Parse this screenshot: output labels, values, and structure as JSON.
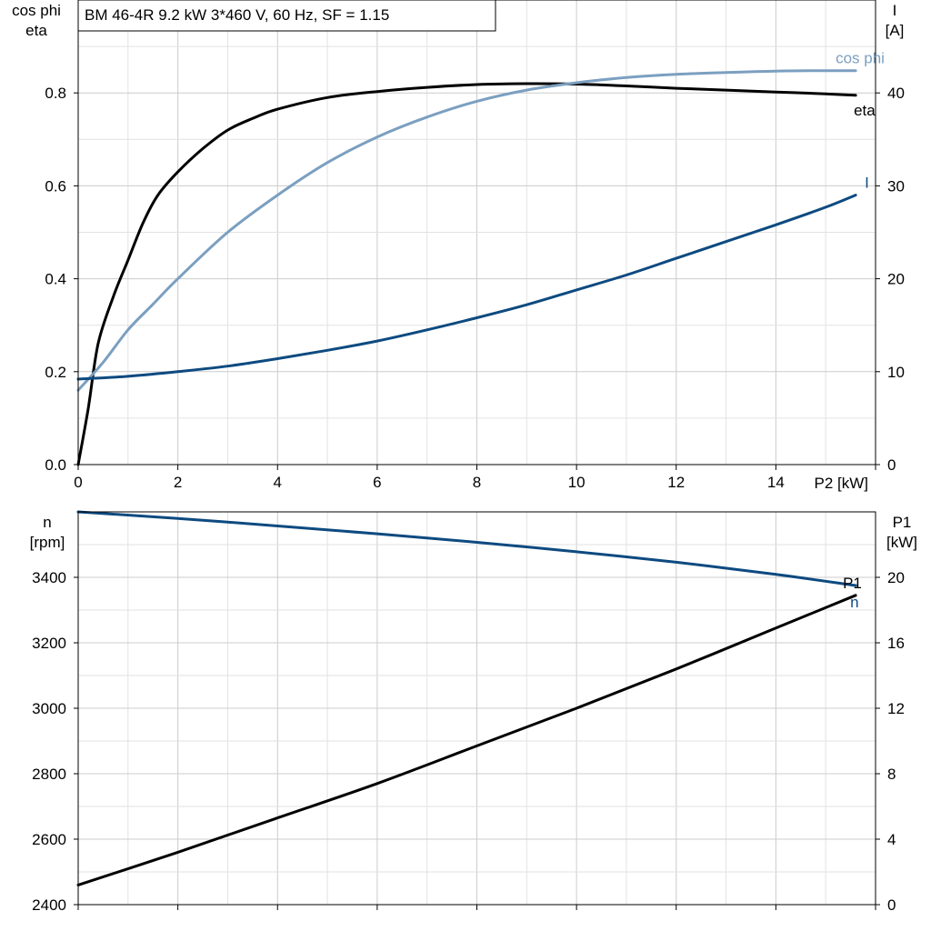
{
  "title": "BM 46-4R   9.2 kW   3*460 V, 60 Hz, SF = 1.15",
  "colors": {
    "eta": "#000000",
    "cos_phi": "#7b9fc0",
    "current": "#0d4a80",
    "speed": "#0d4a80",
    "p1": "#000000"
  },
  "chart_data": [
    {
      "type": "line",
      "name": "top-panel",
      "xlabel": "P2 [kW]",
      "xlim": [
        0,
        16
      ],
      "x_ticks": [
        "0",
        "2",
        "4",
        "6",
        "8",
        "10",
        "12",
        "14"
      ],
      "left_axis": {
        "label_lines": [
          "cos phi",
          "eta"
        ],
        "ylim": [
          0,
          1.0
        ],
        "ticks": [
          "0.0",
          "0.2",
          "0.4",
          "0.6",
          "0.8"
        ]
      },
      "right_axis": {
        "label_lines": [
          "I",
          "[A]"
        ],
        "ylim": [
          0,
          50
        ],
        "ticks": [
          "0",
          "10",
          "20",
          "30",
          "40"
        ]
      },
      "grid": true,
      "series": [
        {
          "name": "eta",
          "axis": "left",
          "x": [
            0,
            0.2,
            0.4,
            0.7,
            1.0,
            1.3,
            1.6,
            2.0,
            2.5,
            3.0,
            3.5,
            4.0,
            5.0,
            6.0,
            7.0,
            8.0,
            9.0,
            10.0,
            11.0,
            12.0,
            13.0,
            14.0,
            15.0,
            15.6
          ],
          "y": [
            0.0,
            0.12,
            0.26,
            0.36,
            0.44,
            0.52,
            0.58,
            0.63,
            0.68,
            0.72,
            0.745,
            0.765,
            0.79,
            0.803,
            0.812,
            0.818,
            0.82,
            0.819,
            0.815,
            0.81,
            0.806,
            0.802,
            0.798,
            0.795
          ]
        },
        {
          "name": "cos phi",
          "axis": "left",
          "x": [
            0,
            0.5,
            1.0,
            1.5,
            2.0,
            3.0,
            4.0,
            5.0,
            6.0,
            7.0,
            8.0,
            9.0,
            10.0,
            11.0,
            12.0,
            13.0,
            14.0,
            15.0,
            15.6
          ],
          "y": [
            0.16,
            0.22,
            0.29,
            0.345,
            0.4,
            0.5,
            0.58,
            0.65,
            0.705,
            0.748,
            0.782,
            0.806,
            0.822,
            0.833,
            0.84,
            0.844,
            0.847,
            0.848,
            0.848
          ]
        },
        {
          "name": "I",
          "axis": "right",
          "x": [
            0,
            1,
            2,
            3,
            4,
            5,
            6,
            7,
            8,
            9,
            10,
            11,
            12,
            13,
            14,
            15,
            15.6
          ],
          "y": [
            9.2,
            9.5,
            10.0,
            10.6,
            11.4,
            12.3,
            13.3,
            14.5,
            15.8,
            17.2,
            18.8,
            20.4,
            22.2,
            24.0,
            25.8,
            27.7,
            29.0
          ]
        }
      ]
    },
    {
      "type": "line",
      "name": "bottom-panel",
      "xlim": [
        0,
        16
      ],
      "left_axis": {
        "label_lines": [
          "n",
          "[rpm]"
        ],
        "ylim": [
          2400,
          3600
        ],
        "ticks": [
          "2400",
          "2600",
          "2800",
          "3000",
          "3200",
          "3400"
        ]
      },
      "right_axis": {
        "label_lines": [
          "P1",
          "[kW]"
        ],
        "ylim": [
          0,
          24
        ],
        "ticks": [
          "0",
          "4",
          "8",
          "12",
          "16",
          "20"
        ]
      },
      "grid": true,
      "series": [
        {
          "name": "n",
          "axis": "left",
          "x": [
            0,
            2,
            4,
            6,
            8,
            10,
            12,
            14,
            15.6
          ],
          "y": [
            3600,
            3580,
            3557,
            3533,
            3507,
            3478,
            3446,
            3409,
            3375
          ]
        },
        {
          "name": "P1",
          "axis": "right",
          "x": [
            0,
            2,
            4,
            6,
            8,
            10,
            12,
            14,
            15.6
          ],
          "y": [
            1.2,
            3.2,
            5.3,
            7.4,
            9.7,
            12.0,
            14.4,
            16.9,
            18.9
          ]
        }
      ]
    }
  ]
}
